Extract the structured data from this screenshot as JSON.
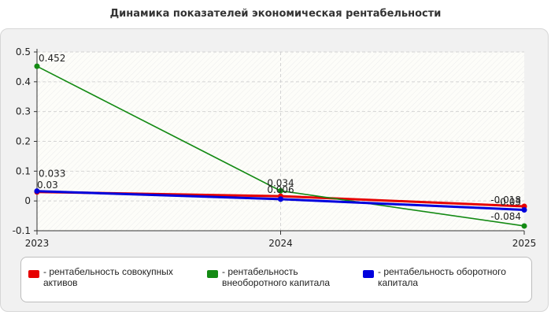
{
  "chart_data": {
    "type": "line",
    "title": "Динамика показателей экономическая рентабельности",
    "categories": [
      "2023",
      "2024",
      "2025"
    ],
    "ylim": [
      -0.1,
      0.5
    ],
    "yticks": [
      "-0.1",
      "0",
      "0.1",
      "0.2",
      "0.3",
      "0.4",
      "0.5"
    ],
    "grid": true,
    "legend_position": "bottom",
    "series": [
      {
        "name": "- рентабельность совокупных активов",
        "color": "#e60000",
        "values": [
          0.03,
          0.016,
          -0.018
        ],
        "labels": [
          "0.03",
          "",
          "-0.018"
        ]
      },
      {
        "name": "- рентабельность внеоборотного капитала",
        "color": "#138a13",
        "values": [
          0.452,
          0.034,
          -0.084
        ],
        "labels": [
          "0.452",
          "0.034",
          "-0.084"
        ]
      },
      {
        "name": "- рентабельность оборотного капитала",
        "color": "#0000dd",
        "values": [
          0.033,
          0.006,
          -0.03
        ],
        "labels": [
          "0.033",
          "0.006",
          "-0.03"
        ]
      }
    ]
  }
}
